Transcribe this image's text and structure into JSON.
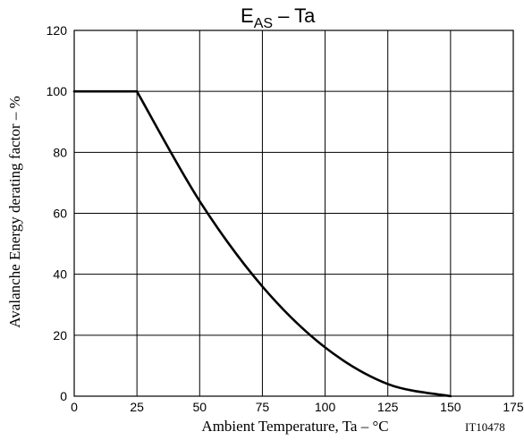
{
  "chart_data": {
    "type": "line",
    "title_main": "E",
    "title_sub": "AS",
    "title_rest": " – Ta",
    "xlabel": "Ambient Temperature, Ta  –  °C",
    "ylabel": "Avalanche Energy derating factor  –  %",
    "code": "IT10478",
    "xlim": [
      0,
      175
    ],
    "ylim": [
      0,
      120
    ],
    "x_ticks": [
      0,
      25,
      50,
      75,
      100,
      125,
      150,
      175
    ],
    "y_ticks": [
      0,
      20,
      40,
      60,
      80,
      100,
      120
    ],
    "x_tick_labels": [
      "0",
      "25",
      "50",
      "75",
      "100",
      "125",
      "150",
      "175"
    ],
    "y_tick_labels": [
      "0",
      "20",
      "40",
      "60",
      "80",
      "100",
      "120"
    ],
    "grid": true,
    "series": [
      {
        "x": [
          0,
          25,
          50,
          75,
          100,
          125,
          150
        ],
        "y": [
          100,
          100,
          64,
          36,
          16,
          4,
          0
        ]
      }
    ]
  }
}
